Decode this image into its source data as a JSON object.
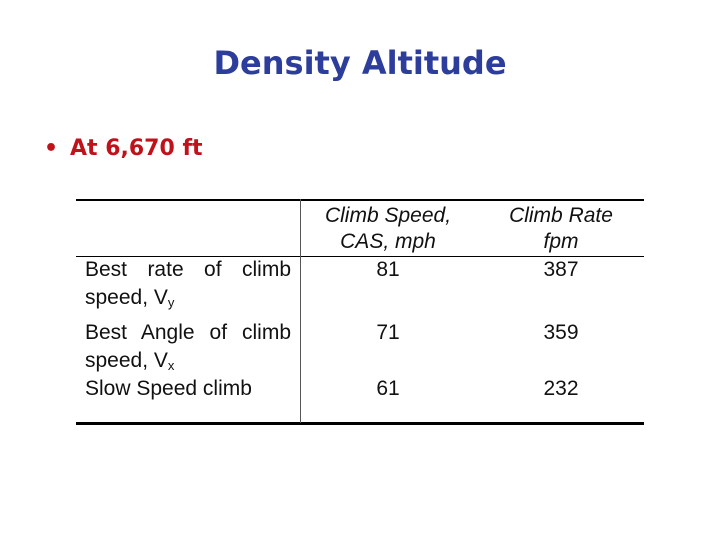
{
  "slide": {
    "title": "Density Altitude",
    "bullet_marker": "•",
    "bullet_text": "At 6,670 ft"
  },
  "table": {
    "headers": [
      {
        "line1": "Climb Speed,",
        "line2": "CAS, mph"
      },
      {
        "line1": "Climb Rate",
        "line2": "fpm"
      }
    ],
    "rows": [
      {
        "label_line1": "Best rate of climb",
        "label_line2": "speed, V",
        "label_sub": "y",
        "speed": "81",
        "rate": "387"
      },
      {
        "label_line1": "Best Angle of climb",
        "label_line2": "speed, V",
        "label_sub": "x",
        "speed": "71",
        "rate": "359"
      },
      {
        "label_line1": "Slow Speed climb",
        "label_line2": "",
        "label_sub": "",
        "speed": "61",
        "rate": "232"
      }
    ]
  },
  "colors": {
    "title": "#2d3d9c",
    "bullet": "#c0121a",
    "text": "#111111"
  }
}
